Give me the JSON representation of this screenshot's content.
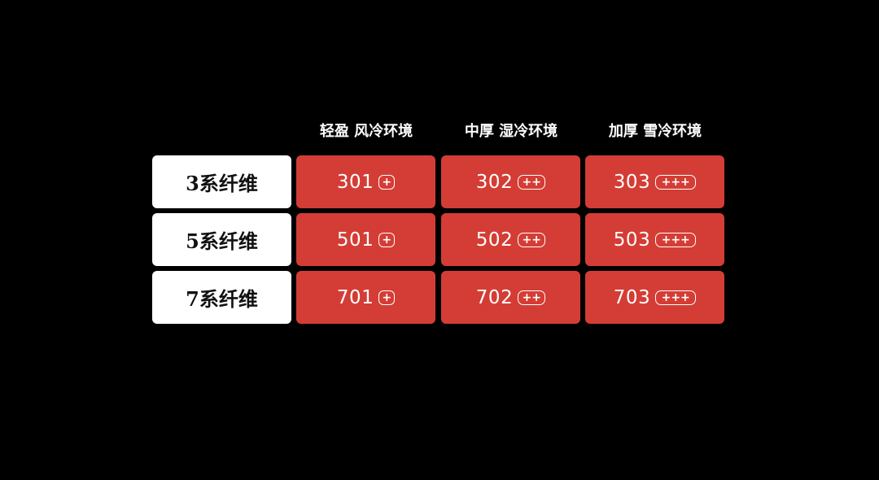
{
  "columns": [
    "轻盈 风冷环境",
    "中厚 湿冷环境",
    "加厚 雪冷环境"
  ],
  "rows": [
    {
      "label": "3系纤维",
      "cells": [
        {
          "code": "301",
          "badge": "+"
        },
        {
          "code": "302",
          "badge": "++"
        },
        {
          "code": "303",
          "badge": "+++"
        }
      ]
    },
    {
      "label": "5系纤维",
      "cells": [
        {
          "code": "501",
          "badge": "+"
        },
        {
          "code": "502",
          "badge": "++"
        },
        {
          "code": "503",
          "badge": "+++"
        }
      ]
    },
    {
      "label": "7系纤维",
      "cells": [
        {
          "code": "701",
          "badge": "+"
        },
        {
          "code": "702",
          "badge": "++"
        },
        {
          "code": "703",
          "badge": "+++"
        }
      ]
    }
  ],
  "colors": {
    "background": "#000000",
    "cell": "#d43d35",
    "label_box": "#ffffff",
    "label_text": "#111111",
    "header_text": "#ffffff"
  }
}
